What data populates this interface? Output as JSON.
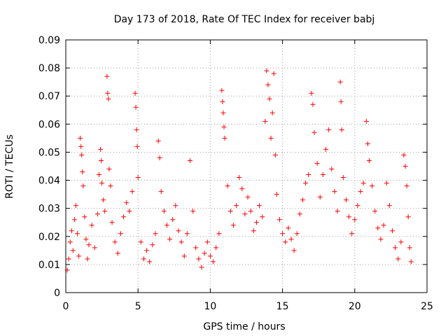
{
  "chart_data": {
    "type": "scatter",
    "title": "Day 173 of 2018, Rate Of TEC Index for receiver babj",
    "xlabel": "GPS time / hours",
    "ylabel": "ROTI / TECUs",
    "xlim": [
      0,
      25
    ],
    "ylim": [
      0,
      0.09
    ],
    "xticks": [
      "0",
      "5",
      "10",
      "15",
      "20",
      "25"
    ],
    "yticks": [
      "0",
      "0.01",
      "0.02",
      "0.03",
      "0.04",
      "0.05",
      "0.06",
      "0.07",
      "0.08",
      "0.09"
    ],
    "grid": true,
    "marker": "+",
    "color": "#ff0000",
    "series": [
      {
        "points": [
          [
            0.1,
            0.008
          ],
          [
            0.2,
            0.012
          ],
          [
            0.3,
            0.018
          ],
          [
            0.4,
            0.022
          ],
          [
            0.5,
            0.015
          ],
          [
            0.6,
            0.026
          ],
          [
            0.7,
            0.031
          ],
          [
            0.8,
            0.021
          ],
          [
            0.9,
            0.013
          ],
          [
            1.0,
            0.055
          ],
          [
            1.05,
            0.052
          ],
          [
            1.1,
            0.049
          ],
          [
            1.15,
            0.043
          ],
          [
            1.2,
            0.038
          ],
          [
            1.3,
            0.027
          ],
          [
            1.4,
            0.019
          ],
          [
            1.5,
            0.012
          ],
          [
            1.6,
            0.017
          ],
          [
            1.8,
            0.024
          ],
          [
            2.0,
            0.016
          ],
          [
            2.2,
            0.028
          ],
          [
            2.3,
            0.042
          ],
          [
            2.4,
            0.051
          ],
          [
            2.45,
            0.047
          ],
          [
            2.5,
            0.039
          ],
          [
            2.6,
            0.033
          ],
          [
            2.7,
            0.029
          ],
          [
            2.85,
            0.077
          ],
          [
            2.9,
            0.071
          ],
          [
            2.95,
            0.069
          ],
          [
            3.0,
            0.044
          ],
          [
            3.1,
            0.038
          ],
          [
            3.2,
            0.025
          ],
          [
            3.4,
            0.018
          ],
          [
            3.6,
            0.014
          ],
          [
            3.8,
            0.021
          ],
          [
            4.0,
            0.027
          ],
          [
            4.2,
            0.032
          ],
          [
            4.4,
            0.029
          ],
          [
            4.6,
            0.036
          ],
          [
            4.8,
            0.071
          ],
          [
            4.85,
            0.066
          ],
          [
            4.9,
            0.058
          ],
          [
            4.95,
            0.052
          ],
          [
            5.0,
            0.041
          ],
          [
            5.2,
            0.018
          ],
          [
            5.4,
            0.012
          ],
          [
            5.6,
            0.015
          ],
          [
            5.8,
            0.011
          ],
          [
            6.0,
            0.017
          ],
          [
            6.2,
            0.021
          ],
          [
            6.4,
            0.054
          ],
          [
            6.5,
            0.048
          ],
          [
            6.6,
            0.036
          ],
          [
            6.8,
            0.029
          ],
          [
            7.0,
            0.024
          ],
          [
            7.2,
            0.019
          ],
          [
            7.4,
            0.026
          ],
          [
            7.6,
            0.031
          ],
          [
            7.8,
            0.022
          ],
          [
            8.0,
            0.018
          ],
          [
            8.2,
            0.013
          ],
          [
            8.4,
            0.021
          ],
          [
            8.6,
            0.047
          ],
          [
            8.8,
            0.029
          ],
          [
            9.0,
            0.016
          ],
          [
            9.2,
            0.012
          ],
          [
            9.4,
            0.009
          ],
          [
            9.6,
            0.014
          ],
          [
            9.8,
            0.018
          ],
          [
            10.0,
            0.013
          ],
          [
            10.2,
            0.011
          ],
          [
            10.4,
            0.016
          ],
          [
            10.6,
            0.021
          ],
          [
            10.8,
            0.072
          ],
          [
            10.85,
            0.068
          ],
          [
            10.9,
            0.064
          ],
          [
            10.95,
            0.059
          ],
          [
            11.0,
            0.055
          ],
          [
            11.2,
            0.038
          ],
          [
            11.4,
            0.029
          ],
          [
            11.6,
            0.024
          ],
          [
            11.8,
            0.031
          ],
          [
            12.0,
            0.041
          ],
          [
            12.2,
            0.037
          ],
          [
            12.4,
            0.028
          ],
          [
            12.6,
            0.034
          ],
          [
            12.8,
            0.029
          ],
          [
            13.0,
            0.022
          ],
          [
            13.2,
            0.025
          ],
          [
            13.4,
            0.031
          ],
          [
            13.6,
            0.027
          ],
          [
            13.8,
            0.061
          ],
          [
            13.9,
            0.079
          ],
          [
            14.0,
            0.074
          ],
          [
            14.1,
            0.069
          ],
          [
            14.2,
            0.055
          ],
          [
            14.3,
            0.064
          ],
          [
            14.4,
            0.078
          ],
          [
            14.5,
            0.049
          ],
          [
            14.6,
            0.035
          ],
          [
            14.8,
            0.026
          ],
          [
            15.0,
            0.021
          ],
          [
            15.2,
            0.018
          ],
          [
            15.4,
            0.023
          ],
          [
            15.6,
            0.019
          ],
          [
            15.8,
            0.015
          ],
          [
            16.0,
            0.021
          ],
          [
            16.2,
            0.028
          ],
          [
            16.4,
            0.033
          ],
          [
            16.6,
            0.039
          ],
          [
            16.8,
            0.042
          ],
          [
            17.0,
            0.071
          ],
          [
            17.1,
            0.067
          ],
          [
            17.2,
            0.057
          ],
          [
            17.4,
            0.046
          ],
          [
            17.6,
            0.034
          ],
          [
            17.8,
            0.042
          ],
          [
            18.0,
            0.051
          ],
          [
            18.2,
            0.058
          ],
          [
            18.4,
            0.044
          ],
          [
            18.6,
            0.036
          ],
          [
            18.8,
            0.029
          ],
          [
            19.0,
            0.075
          ],
          [
            19.05,
            0.068
          ],
          [
            19.1,
            0.058
          ],
          [
            19.2,
            0.041
          ],
          [
            19.4,
            0.033
          ],
          [
            19.6,
            0.027
          ],
          [
            19.8,
            0.021
          ],
          [
            20.0,
            0.026
          ],
          [
            20.2,
            0.031
          ],
          [
            20.4,
            0.036
          ],
          [
            20.6,
            0.039
          ],
          [
            20.8,
            0.061
          ],
          [
            20.9,
            0.053
          ],
          [
            21.0,
            0.047
          ],
          [
            21.2,
            0.038
          ],
          [
            21.4,
            0.029
          ],
          [
            21.6,
            0.023
          ],
          [
            21.8,
            0.019
          ],
          [
            22.0,
            0.024
          ],
          [
            22.2,
            0.039
          ],
          [
            22.4,
            0.031
          ],
          [
            22.6,
            0.022
          ],
          [
            22.8,
            0.016
          ],
          [
            23.0,
            0.012
          ],
          [
            23.2,
            0.018
          ],
          [
            23.4,
            0.049
          ],
          [
            23.5,
            0.045
          ],
          [
            23.6,
            0.038
          ],
          [
            23.7,
            0.027
          ],
          [
            23.8,
            0.016
          ],
          [
            23.9,
            0.011
          ]
        ]
      }
    ]
  }
}
